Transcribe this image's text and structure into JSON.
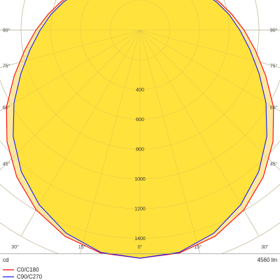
{
  "chart_data": {
    "type": "polar",
    "unit_label": "cd",
    "lumens_label": "4560 lm",
    "radial_ticks": [
      400,
      600,
      800,
      1000,
      1200,
      1400
    ],
    "radial_max": 1600,
    "angle_labels": [
      {
        "text": "90°",
        "angle": 90
      },
      {
        "text": "75°",
        "angle": 75
      },
      {
        "text": "60°",
        "angle": 60
      },
      {
        "text": "45°",
        "angle": 45
      },
      {
        "text": "30°",
        "angle": 30
      },
      {
        "text": "15°",
        "angle": 15
      },
      {
        "text": "0°",
        "angle": 0
      }
    ],
    "legend": [
      {
        "name": "C0/C180",
        "color": "#ff0000"
      },
      {
        "name": "C90/C270",
        "color": "#1a1aff"
      }
    ],
    "fill_outer": "#fde8a0",
    "fill_inner": "#ffe23c",
    "angles": [
      0,
      10,
      20,
      30,
      40,
      50,
      60,
      70,
      80,
      90,
      100,
      110,
      120,
      130,
      140,
      150,
      160,
      170,
      180
    ],
    "series": [
      {
        "name": "C0/C180",
        "values": [
          1533,
          1522,
          1475,
          1396,
          1289,
          1167,
          1037,
          900,
          788,
          700,
          625,
          563,
          505,
          462,
          439,
          430,
          428,
          417,
          405
        ]
      },
      {
        "name": "C90/C270",
        "values": [
          1533,
          1517,
          1453,
          1355,
          1242,
          1113,
          978,
          852,
          750,
          671,
          608,
          549,
          495,
          457,
          434,
          425,
          421,
          410,
          398
        ]
      }
    ]
  }
}
